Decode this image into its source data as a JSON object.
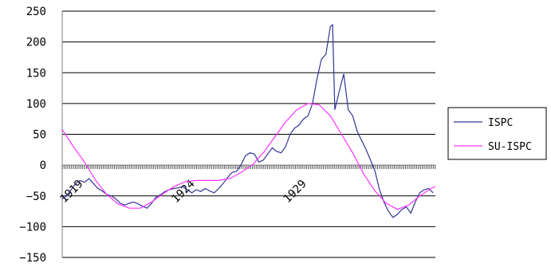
{
  "chart_data": {
    "type": "line",
    "title": "",
    "xlabel": "",
    "ylabel": "",
    "ylim": [
      -150,
      250
    ],
    "yticks": [
      250,
      200,
      150,
      100,
      50,
      0,
      -50,
      -100,
      -150
    ],
    "grid": true,
    "legend_position": "right",
    "x_tick_labels": [
      {
        "label": "1919",
        "year": 1919.1
      },
      {
        "label": "1924",
        "year": 1924.1
      },
      {
        "label": "1929",
        "year": 1929.1
      }
    ],
    "xlim": [
      1919,
      1935.7
    ],
    "series": [
      {
        "name": "ISPC",
        "color": "#333399",
        "points": [
          [
            1919.0,
            -55
          ],
          [
            1919.2,
            -50
          ],
          [
            1919.4,
            -40
          ],
          [
            1919.6,
            -30
          ],
          [
            1919.8,
            -25
          ],
          [
            1920.0,
            -28
          ],
          [
            1920.2,
            -22
          ],
          [
            1920.4,
            -30
          ],
          [
            1920.6,
            -38
          ],
          [
            1920.8,
            -42
          ],
          [
            1921.0,
            -48
          ],
          [
            1921.2,
            -50
          ],
          [
            1921.4,
            -55
          ],
          [
            1921.6,
            -62
          ],
          [
            1921.8,
            -65
          ],
          [
            1922.0,
            -62
          ],
          [
            1922.2,
            -60
          ],
          [
            1922.4,
            -63
          ],
          [
            1922.6,
            -67
          ],
          [
            1922.8,
            -70
          ],
          [
            1923.0,
            -62
          ],
          [
            1923.2,
            -52
          ],
          [
            1923.4,
            -48
          ],
          [
            1923.6,
            -43
          ],
          [
            1923.8,
            -40
          ],
          [
            1924.0,
            -38
          ],
          [
            1924.2,
            -37
          ],
          [
            1924.4,
            -35
          ],
          [
            1924.6,
            -40
          ],
          [
            1924.8,
            -45
          ],
          [
            1925.0,
            -40
          ],
          [
            1925.2,
            -43
          ],
          [
            1925.4,
            -38
          ],
          [
            1925.6,
            -42
          ],
          [
            1925.8,
            -45
          ],
          [
            1926.0,
            -38
          ],
          [
            1926.2,
            -30
          ],
          [
            1926.4,
            -20
          ],
          [
            1926.6,
            -12
          ],
          [
            1926.8,
            -10
          ],
          [
            1927.0,
            0
          ],
          [
            1927.2,
            15
          ],
          [
            1927.4,
            20
          ],
          [
            1927.6,
            18
          ],
          [
            1927.8,
            5
          ],
          [
            1928.0,
            8
          ],
          [
            1928.2,
            18
          ],
          [
            1928.4,
            28
          ],
          [
            1928.6,
            22
          ],
          [
            1928.8,
            20
          ],
          [
            1929.0,
            30
          ],
          [
            1929.2,
            50
          ],
          [
            1929.4,
            60
          ],
          [
            1929.6,
            65
          ],
          [
            1929.8,
            75
          ],
          [
            1930.0,
            80
          ],
          [
            1930.2,
            100
          ],
          [
            1930.4,
            140
          ],
          [
            1930.6,
            172
          ],
          [
            1930.8,
            180
          ],
          [
            1931.0,
            225
          ],
          [
            1931.1,
            228
          ],
          [
            1931.2,
            90
          ],
          [
            1931.4,
            120
          ],
          [
            1931.6,
            148
          ],
          [
            1931.8,
            90
          ],
          [
            1932.0,
            80
          ],
          [
            1932.2,
            55
          ],
          [
            1932.4,
            40
          ],
          [
            1932.6,
            25
          ],
          [
            1932.8,
            8
          ],
          [
            1933.0,
            -10
          ],
          [
            1933.2,
            -40
          ],
          [
            1933.4,
            -60
          ],
          [
            1933.6,
            -75
          ],
          [
            1933.8,
            -85
          ],
          [
            1934.0,
            -80
          ],
          [
            1934.2,
            -72
          ],
          [
            1934.4,
            -68
          ],
          [
            1934.6,
            -78
          ],
          [
            1934.8,
            -60
          ],
          [
            1935.0,
            -45
          ],
          [
            1935.2,
            -40
          ],
          [
            1935.4,
            -38
          ],
          [
            1935.6,
            -45
          ]
        ]
      },
      {
        "name": "SU-ISPC",
        "color": "#ff33ff",
        "points": [
          [
            1919.0,
            58
          ],
          [
            1919.5,
            30
          ],
          [
            1920.0,
            5
          ],
          [
            1920.5,
            -25
          ],
          [
            1921.0,
            -48
          ],
          [
            1921.5,
            -63
          ],
          [
            1922.0,
            -70
          ],
          [
            1922.5,
            -70
          ],
          [
            1923.0,
            -60
          ],
          [
            1923.5,
            -47
          ],
          [
            1924.0,
            -35
          ],
          [
            1924.5,
            -27
          ],
          [
            1925.0,
            -25
          ],
          [
            1925.5,
            -25
          ],
          [
            1926.0,
            -25
          ],
          [
            1926.5,
            -22
          ],
          [
            1927.0,
            -12
          ],
          [
            1927.5,
            0
          ],
          [
            1928.0,
            20
          ],
          [
            1928.5,
            45
          ],
          [
            1929.0,
            70
          ],
          [
            1929.5,
            90
          ],
          [
            1930.0,
            100
          ],
          [
            1930.5,
            98
          ],
          [
            1931.0,
            80
          ],
          [
            1931.5,
            50
          ],
          [
            1932.0,
            20
          ],
          [
            1932.5,
            -15
          ],
          [
            1933.0,
            -42
          ],
          [
            1933.5,
            -62
          ],
          [
            1934.0,
            -72
          ],
          [
            1934.5,
            -65
          ],
          [
            1935.0,
            -50
          ],
          [
            1935.5,
            -38
          ],
          [
            1935.7,
            -35
          ]
        ]
      }
    ]
  },
  "colors": {
    "grid": "#000000",
    "axis": "#808080",
    "text": "#000000"
  }
}
